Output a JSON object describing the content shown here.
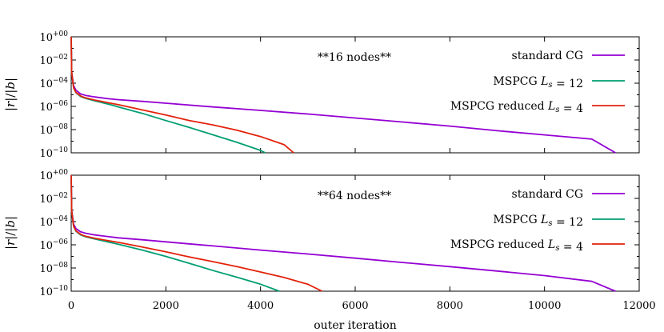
{
  "chart_data": [
    {
      "type": "line",
      "annotation": "**16 nodes**",
      "ylabel": "|r|/|b|",
      "xlabel": "",
      "xlim": [
        0,
        12000
      ],
      "ylim": [
        1e-10,
        1
      ],
      "yscale": "log",
      "ytick_exponents": [
        "+00",
        "−02",
        "−04",
        "−06",
        "−08",
        "−10"
      ],
      "xtick_labels": [],
      "legend_position": "top-right",
      "series": [
        {
          "name": "standard CG",
          "color": "#9400d3",
          "x": [
            0,
            10,
            50,
            100,
            200,
            300,
            500,
            800,
            1000,
            1500,
            2000,
            3000,
            4000,
            5000,
            6000,
            7000,
            8000,
            9000,
            10000,
            11000,
            11500
          ],
          "y": [
            1,
            0.001,
            6e-05,
            2.5e-05,
            1.2e-05,
            9e-06,
            6.5e-06,
            4.5e-06,
            3.8e-06,
            2.7e-06,
            1.9e-06,
            9e-07,
            4.5e-07,
            2.2e-07,
            1e-07,
            4.5e-08,
            2e-08,
            8e-09,
            3.5e-09,
            1.5e-09,
            1e-10
          ]
        },
        {
          "name": "MSPCG",
          "color": "#009e73",
          "x": [
            0,
            10,
            50,
            100,
            200,
            300,
            500,
            800,
            1000,
            1500,
            2000,
            2500,
            3000,
            3500,
            4000,
            4100
          ],
          "y": [
            1,
            0.0008,
            4e-05,
            1.5e-05,
            7e-06,
            5e-06,
            3e-06,
            1.5e-06,
            9e-07,
            2.5e-07,
            6e-08,
            1.5e-08,
            3.5e-09,
            8e-10,
            1.6e-10,
            1e-10
          ]
        },
        {
          "name": "MSPCG reduced",
          "color": "#e3220b",
          "x": [
            0,
            10,
            50,
            100,
            200,
            300,
            500,
            800,
            1000,
            1500,
            2000,
            2500,
            3000,
            3500,
            4000,
            4500,
            4700
          ],
          "y": [
            1,
            0.0008,
            4e-05,
            1.6e-05,
            8e-06,
            5.5e-06,
            3.5e-06,
            2e-06,
            1.4e-06,
            5e-07,
            1.8e-07,
            6e-08,
            2.5e-08,
            9e-09,
            2.5e-09,
            5e-10,
            1e-10
          ]
        }
      ]
    },
    {
      "type": "line",
      "annotation": "**64 nodes**",
      "ylabel": "|r|/|b|",
      "xlabel": "outer iteration",
      "xlim": [
        0,
        12000
      ],
      "ylim": [
        1e-10,
        1
      ],
      "yscale": "log",
      "ytick_exponents": [
        "+00",
        "−02",
        "−04",
        "−06",
        "−08",
        "−10"
      ],
      "xtick_labels": [
        "0",
        "2000",
        "4000",
        "6000",
        "8000",
        "10000",
        "12000"
      ],
      "legend_position": "top-right",
      "series": [
        {
          "name": "standard CG",
          "color": "#9400d3",
          "x": [
            0,
            10,
            50,
            100,
            200,
            300,
            500,
            800,
            1000,
            1500,
            2000,
            3000,
            4000,
            5000,
            6000,
            7000,
            8000,
            9000,
            10000,
            11000,
            11500
          ],
          "y": [
            1,
            0.001,
            6e-05,
            2.5e-05,
            1.3e-05,
            1e-05,
            7e-06,
            5e-06,
            4e-06,
            2.7e-06,
            1.8e-06,
            8e-07,
            3.5e-07,
            1.6e-07,
            7e-08,
            3e-08,
            1.3e-08,
            5.5e-09,
            2.2e-09,
            7e-10,
            1e-10
          ]
        },
        {
          "name": "MSPCG",
          "color": "#009e73",
          "x": [
            0,
            10,
            50,
            100,
            200,
            300,
            500,
            800,
            1000,
            1500,
            2000,
            2500,
            3000,
            3500,
            4000,
            4400
          ],
          "y": [
            1,
            0.0008,
            4e-05,
            1.5e-05,
            7e-06,
            5e-06,
            3.2e-06,
            1.7e-06,
            1.1e-06,
            3.5e-07,
            1e-07,
            2.5e-08,
            6e-09,
            1.6e-09,
            4e-10,
            1e-10
          ]
        },
        {
          "name": "MSPCG reduced",
          "color": "#e3220b",
          "x": [
            0,
            10,
            50,
            100,
            200,
            300,
            500,
            800,
            1000,
            1500,
            2000,
            2500,
            3000,
            3500,
            4000,
            4500,
            5000,
            5300
          ],
          "y": [
            1,
            0.0008,
            4e-05,
            1.6e-05,
            8e-06,
            5.5e-06,
            3.6e-06,
            2.2e-06,
            1.6e-06,
            6.5e-07,
            2.5e-07,
            9e-08,
            3.5e-08,
            1.3e-08,
            4.5e-09,
            1.5e-09,
            4e-10,
            1e-10
          ]
        }
      ]
    }
  ],
  "legend": {
    "entry1": "standard CG",
    "entry2_prefix": "MSPCG ",
    "entry2_var": "L",
    "entry2_sub": "s",
    "entry2_suffix": " = 12",
    "entry3_prefix": "MSPCG reduced ",
    "entry3_var": "L",
    "entry3_sub": "s",
    "entry3_suffix": " = 4"
  },
  "yaxis_label": {
    "a": "|",
    "r": "r",
    "b": "|/|",
    "bvar": "b",
    "c": "|"
  }
}
